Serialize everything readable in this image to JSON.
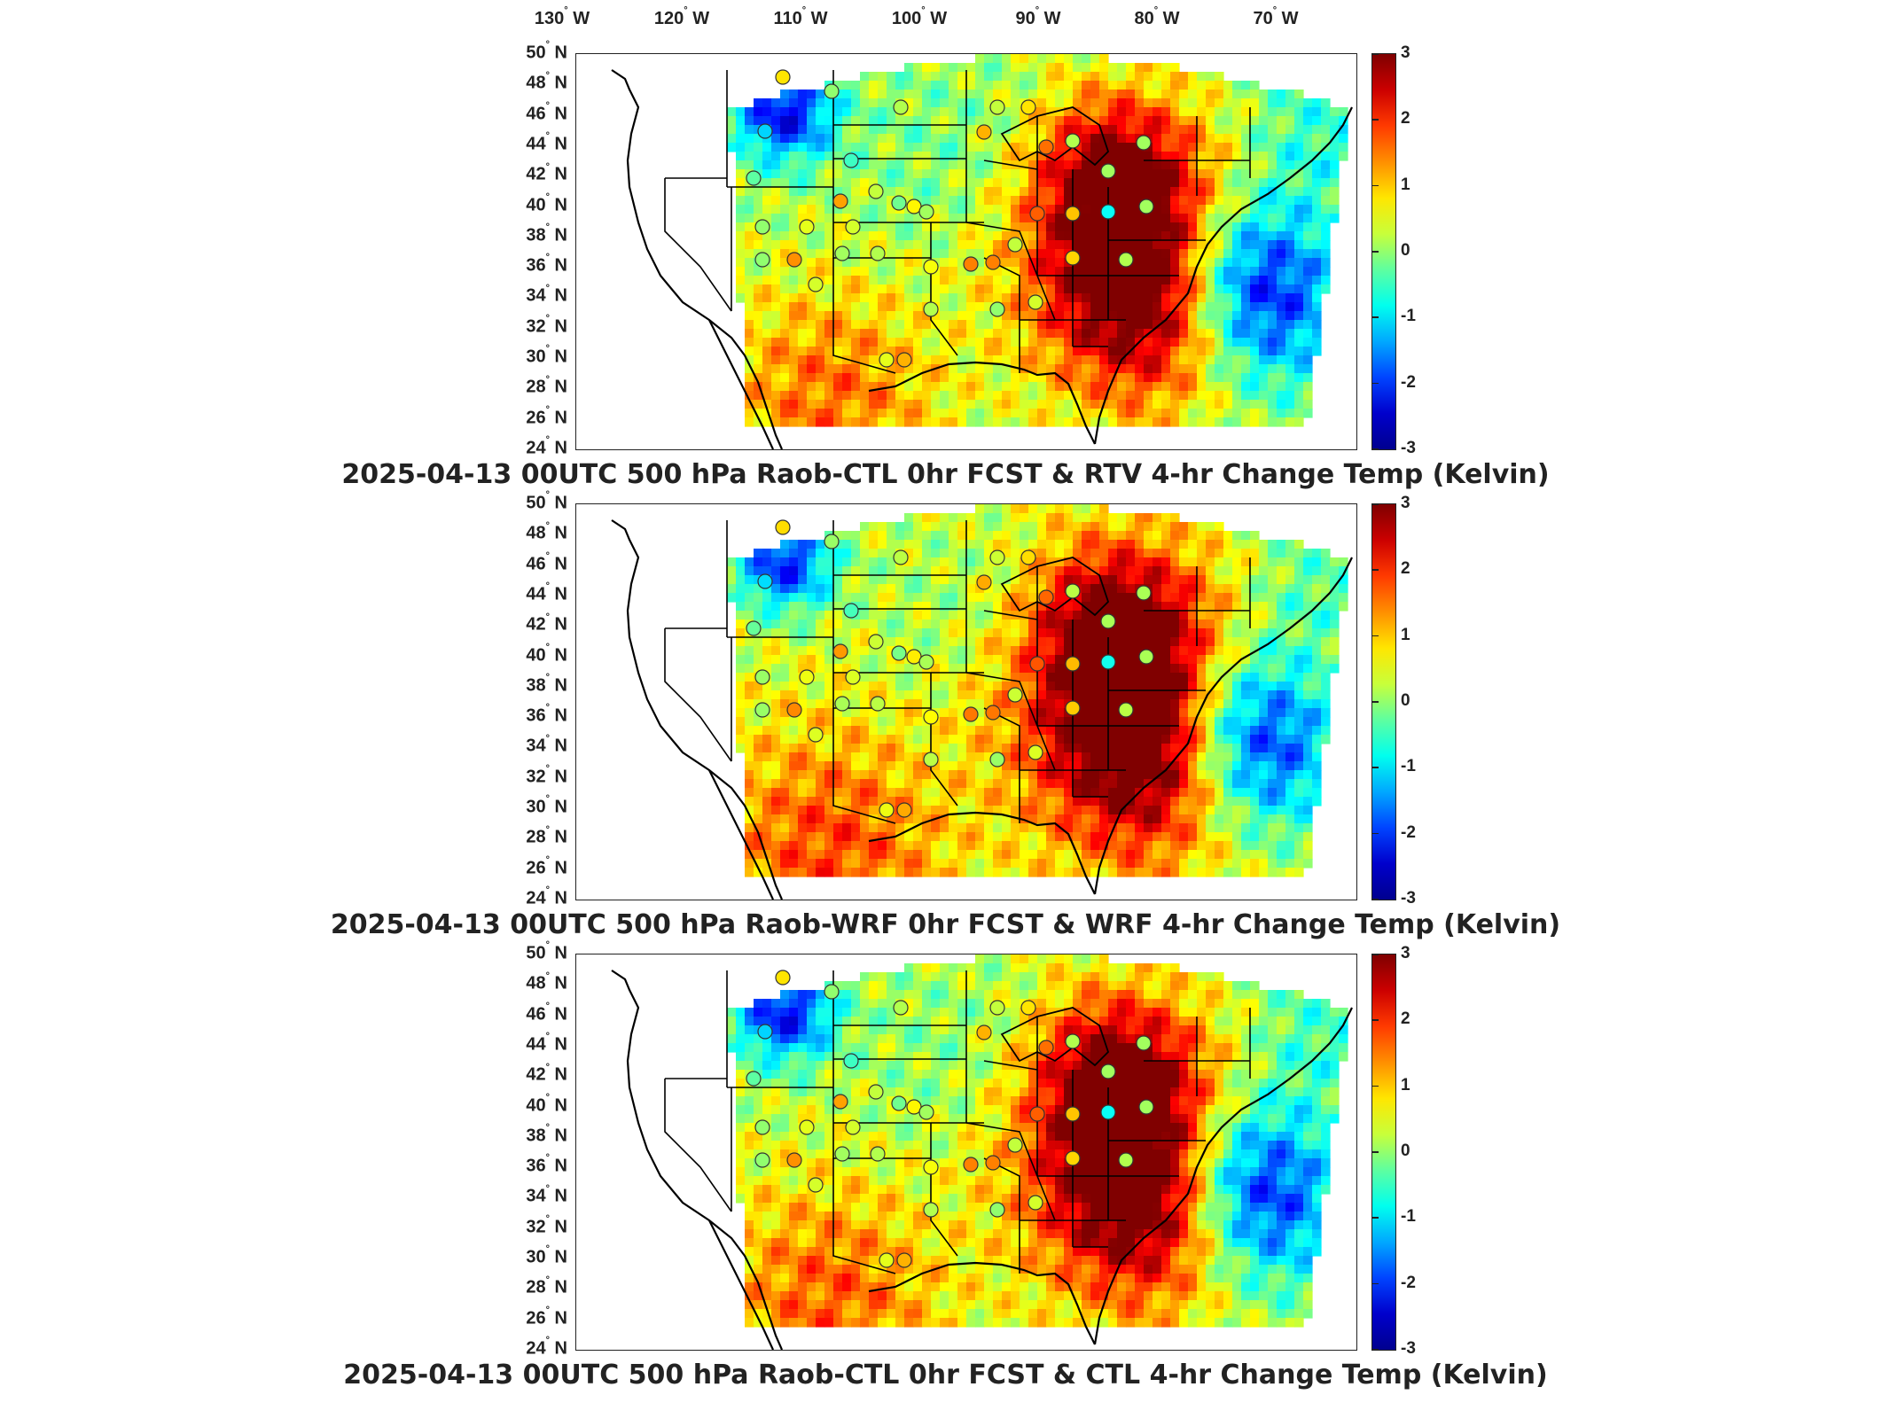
{
  "longitude_labels": [
    {
      "deg": "130",
      "dir": "W"
    },
    {
      "deg": "120",
      "dir": "W"
    },
    {
      "deg": "110",
      "dir": "W"
    },
    {
      "deg": "100",
      "dir": "W"
    },
    {
      "deg": "90",
      "dir": "W"
    },
    {
      "deg": "80",
      "dir": "W"
    },
    {
      "deg": "70",
      "dir": "W"
    }
  ],
  "latitude_labels": [
    {
      "deg": "50",
      "dir": "N"
    },
    {
      "deg": "48",
      "dir": "N"
    },
    {
      "deg": "46",
      "dir": "N"
    },
    {
      "deg": "44",
      "dir": "N"
    },
    {
      "deg": "42",
      "dir": "N"
    },
    {
      "deg": "40",
      "dir": "N"
    },
    {
      "deg": "38",
      "dir": "N"
    },
    {
      "deg": "36",
      "dir": "N"
    },
    {
      "deg": "34",
      "dir": "N"
    },
    {
      "deg": "32",
      "dir": "N"
    },
    {
      "deg": "30",
      "dir": "N"
    },
    {
      "deg": "28",
      "dir": "N"
    },
    {
      "deg": "26",
      "dir": "N"
    },
    {
      "deg": "24",
      "dir": "N"
    }
  ],
  "colorbar": {
    "ticks": [
      "3",
      "2",
      "1",
      "0",
      "-1",
      "-2",
      "-3"
    ],
    "range": [
      -3,
      3
    ],
    "colormap": "jet",
    "colors": [
      "#7f0000",
      "#cc0000",
      "#ff3a00",
      "#ff8f00",
      "#ffe600",
      "#c8ff3a",
      "#5effa0",
      "#00ffee",
      "#00a8ff",
      "#0044ff",
      "#0000cc",
      "#00008f"
    ]
  },
  "panels": [
    {
      "title": "2025-04-13 00UTC 500 hPa Raob-CTL 0hr FCST & RTV 4-hr Change Temp (Kelvin)",
      "variant": "rtv"
    },
    {
      "title": "2025-04-13 00UTC 500 hPa Raob-WRF 0hr FCST & WRF 4-hr Change Temp (Kelvin)",
      "variant": "wrf"
    },
    {
      "title": "2025-04-13 00UTC 500 hPa Raob-CTL 0hr FCST & CTL 4-hr Change Temp (Kelvin)",
      "variant": "ctl"
    }
  ],
  "chart_data": {
    "type": "heatmap",
    "variable": "500 hPa temperature change (Kelvin)",
    "value_range": [
      -3,
      3
    ],
    "lon_range": [
      -130,
      -68
    ],
    "lat_range": [
      24,
      50
    ],
    "station_markers": "raob sites shown as circles colored by Raob-minus-forecast difference"
  }
}
